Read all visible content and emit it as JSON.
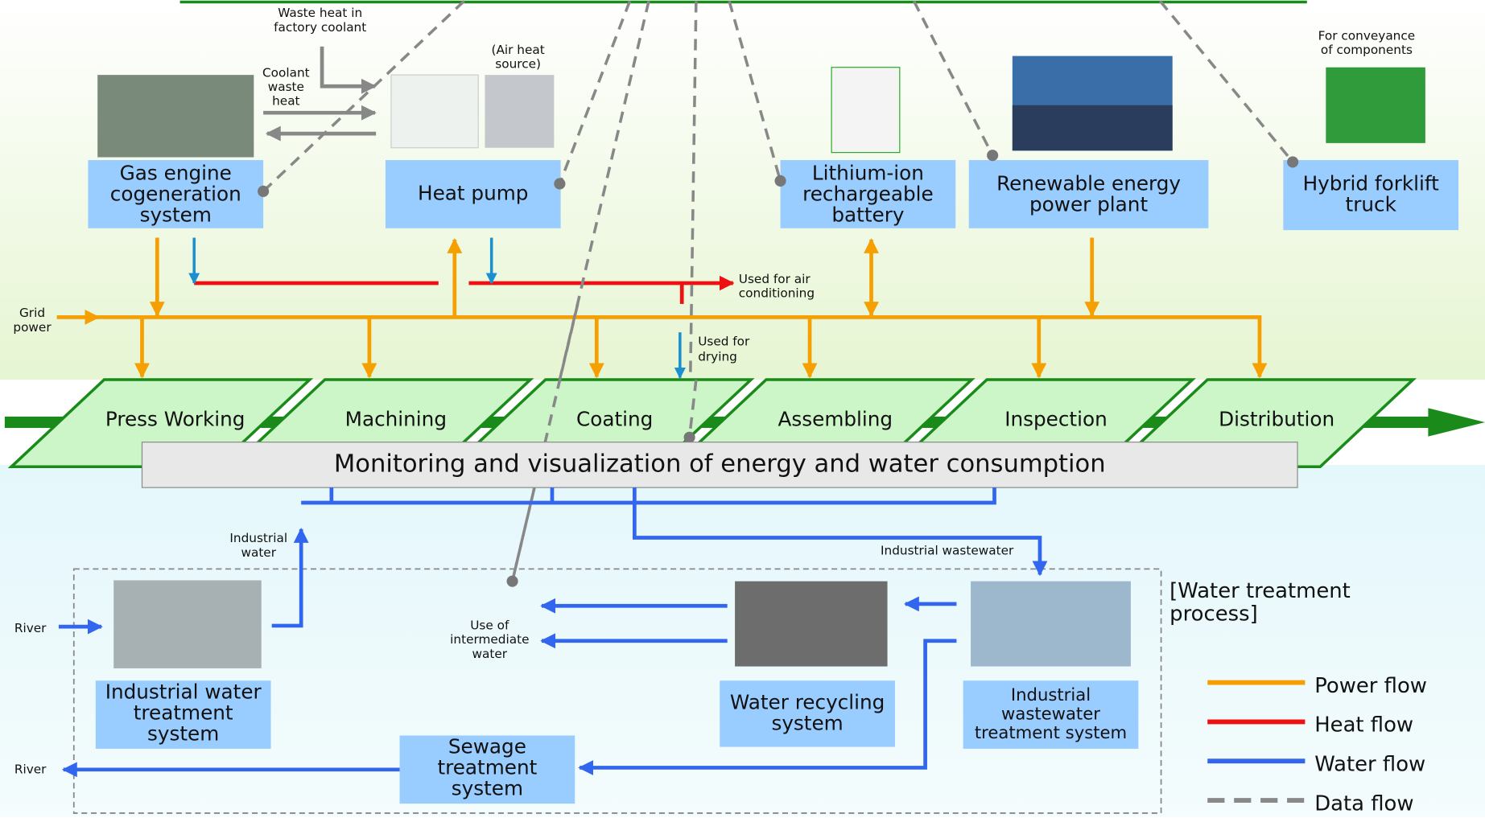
{
  "equipment": [
    {
      "label": [
        "Gas engine",
        "cogeneration",
        "system"
      ]
    },
    {
      "label": [
        "Heat pump"
      ]
    },
    {
      "label": [
        "Lithium-ion",
        "rechargeable",
        "battery"
      ]
    },
    {
      "label": [
        "Renewable energy",
        "power plant"
      ]
    },
    {
      "label": [
        "Hybrid forklift",
        "truck"
      ]
    }
  ],
  "annotations": {
    "waste_heat": [
      "Waste heat in",
      "factory coolant"
    ],
    "coolant": [
      "Coolant",
      "waste",
      "heat"
    ],
    "air_heat": [
      "(Air heat",
      "source)"
    ],
    "conveyance": [
      "For conveyance",
      "of components"
    ],
    "grid": [
      "Grid",
      "power"
    ],
    "air_conditioning": [
      "Used for air",
      "conditioning"
    ],
    "drying": [
      "Used for",
      "drying"
    ],
    "industrial_water": [
      "Industrial",
      "water"
    ],
    "industrial_wastewater": [
      "Industrial wastewater"
    ],
    "river_in": [
      "River"
    ],
    "river_out": [
      "River"
    ],
    "intermediate": [
      "Use of",
      "intermediate",
      "water"
    ],
    "water_process": [
      "[Water treatment",
      "process]"
    ]
  },
  "processes": [
    "Press Working",
    "Machining",
    "Coating",
    "Assembling",
    "Inspection",
    "Distribution"
  ],
  "monitoring": "Monitoring and visualization of energy and water consumption",
  "water_systems": [
    {
      "label": [
        "Industrial water",
        "treatment",
        "system"
      ]
    },
    {
      "label": [
        "Water recycling",
        "system"
      ]
    },
    {
      "label": [
        "Industrial",
        "wastewater",
        "treatment system"
      ]
    },
    {
      "label": [
        "Sewage",
        "treatment",
        "system"
      ]
    }
  ],
  "legend": [
    "Power flow",
    "Heat flow",
    "Water flow",
    "Data flow"
  ]
}
